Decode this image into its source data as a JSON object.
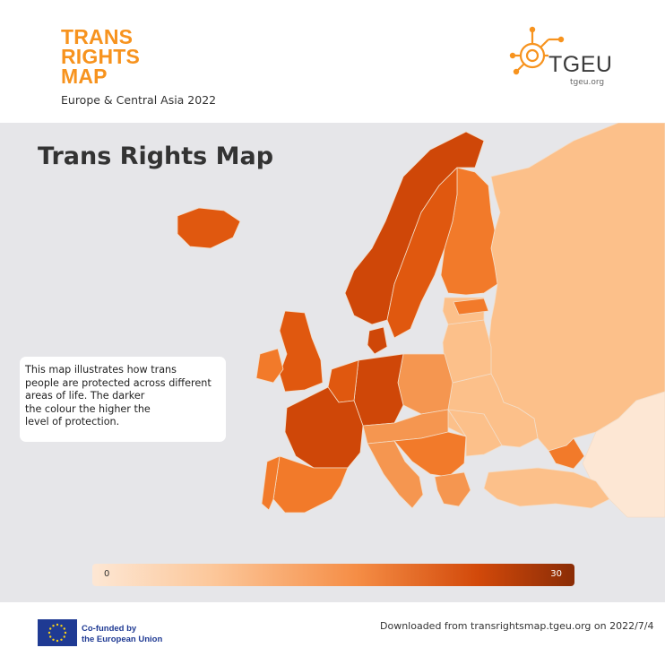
{
  "header": {
    "title_lines": [
      "TRANS",
      "RIGHTS",
      "MAP"
    ],
    "subtitle": "Europe & Central Asia 2022",
    "logo_name": "TGEU",
    "logo_url": "tgeu.org"
  },
  "map": {
    "heading": "Trans Rights Map",
    "info_lines": [
      "This map illustrates how trans",
      "people are protected across different",
      "areas of life. The darker",
      "the colour the higher the",
      "level of protection."
    ],
    "legend": {
      "min_label": "0",
      "max_label": "30"
    },
    "colors": {
      "sea": "#e6e6e9",
      "very_light": "#fde7d4",
      "light": "#fcc08a",
      "medium": "#f59650",
      "medium_dark": "#f27a2a",
      "dark": "#e0580f",
      "darkest": "#cf4708",
      "border": "#f3ddc8"
    }
  },
  "footer": {
    "eu_lines": [
      "Co-funded by",
      "the European Union"
    ],
    "download_note": "Downloaded from transrightsmap.tgeu.org on 2022/7/4"
  }
}
